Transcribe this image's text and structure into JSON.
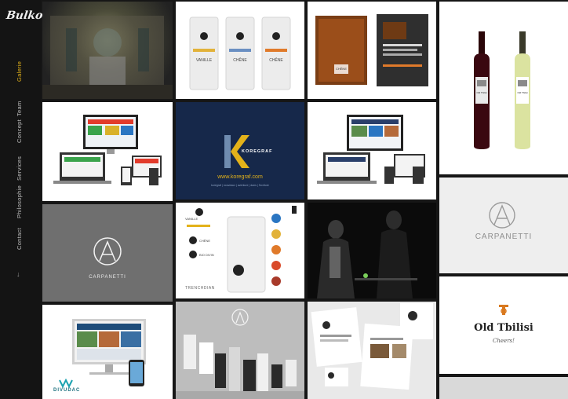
{
  "brand": {
    "logo_text": "Bulko"
  },
  "nav": {
    "items": [
      {
        "label": "Galerie",
        "active": true
      },
      {
        "label": "Team",
        "active": false
      },
      {
        "label": "Concept",
        "active": false
      },
      {
        "label": "Services",
        "active": false
      },
      {
        "label": "Philosophie",
        "active": false
      },
      {
        "label": "Contact",
        "active": false
      }
    ],
    "scroll_arrow_icon": "arrow-down-icon"
  },
  "gallery": {
    "koregraf": {
      "brand": "KOREGRAF",
      "url": "www.koregraf.com",
      "tagline": "koregraf | nouveaux | aventure | dans | l'ecriture"
    },
    "coffee_bags": {
      "bag_text": [
        "VANILLE",
        "CHÊNE",
        "CHÊNE"
      ]
    },
    "carpanetti_grey": {
      "name": "CARPANETTI"
    },
    "carpanetti_light": {
      "name": "CARPANETTI"
    },
    "old_tbilisi": {
      "name": "Old Tbilisi",
      "tagline": "Cheers!"
    },
    "wine": {
      "label": "Old Tbilisi"
    },
    "bordeaux_brochure": {
      "title": "CHÊNE"
    },
    "cosmetics": {
      "badge": "A"
    },
    "divudac": {
      "brand": "DIVUDAC"
    },
    "trio": {
      "labels": [
        "VANILLE",
        "CHÊNE",
        "BIO DIVIN"
      ],
      "footer": "TRENCHDIAN"
    }
  },
  "colors": {
    "accent": "#e3b21a",
    "navy": "#16284a",
    "bottle_red": "#3a0810",
    "bottle_white": "#dbe3a0"
  }
}
